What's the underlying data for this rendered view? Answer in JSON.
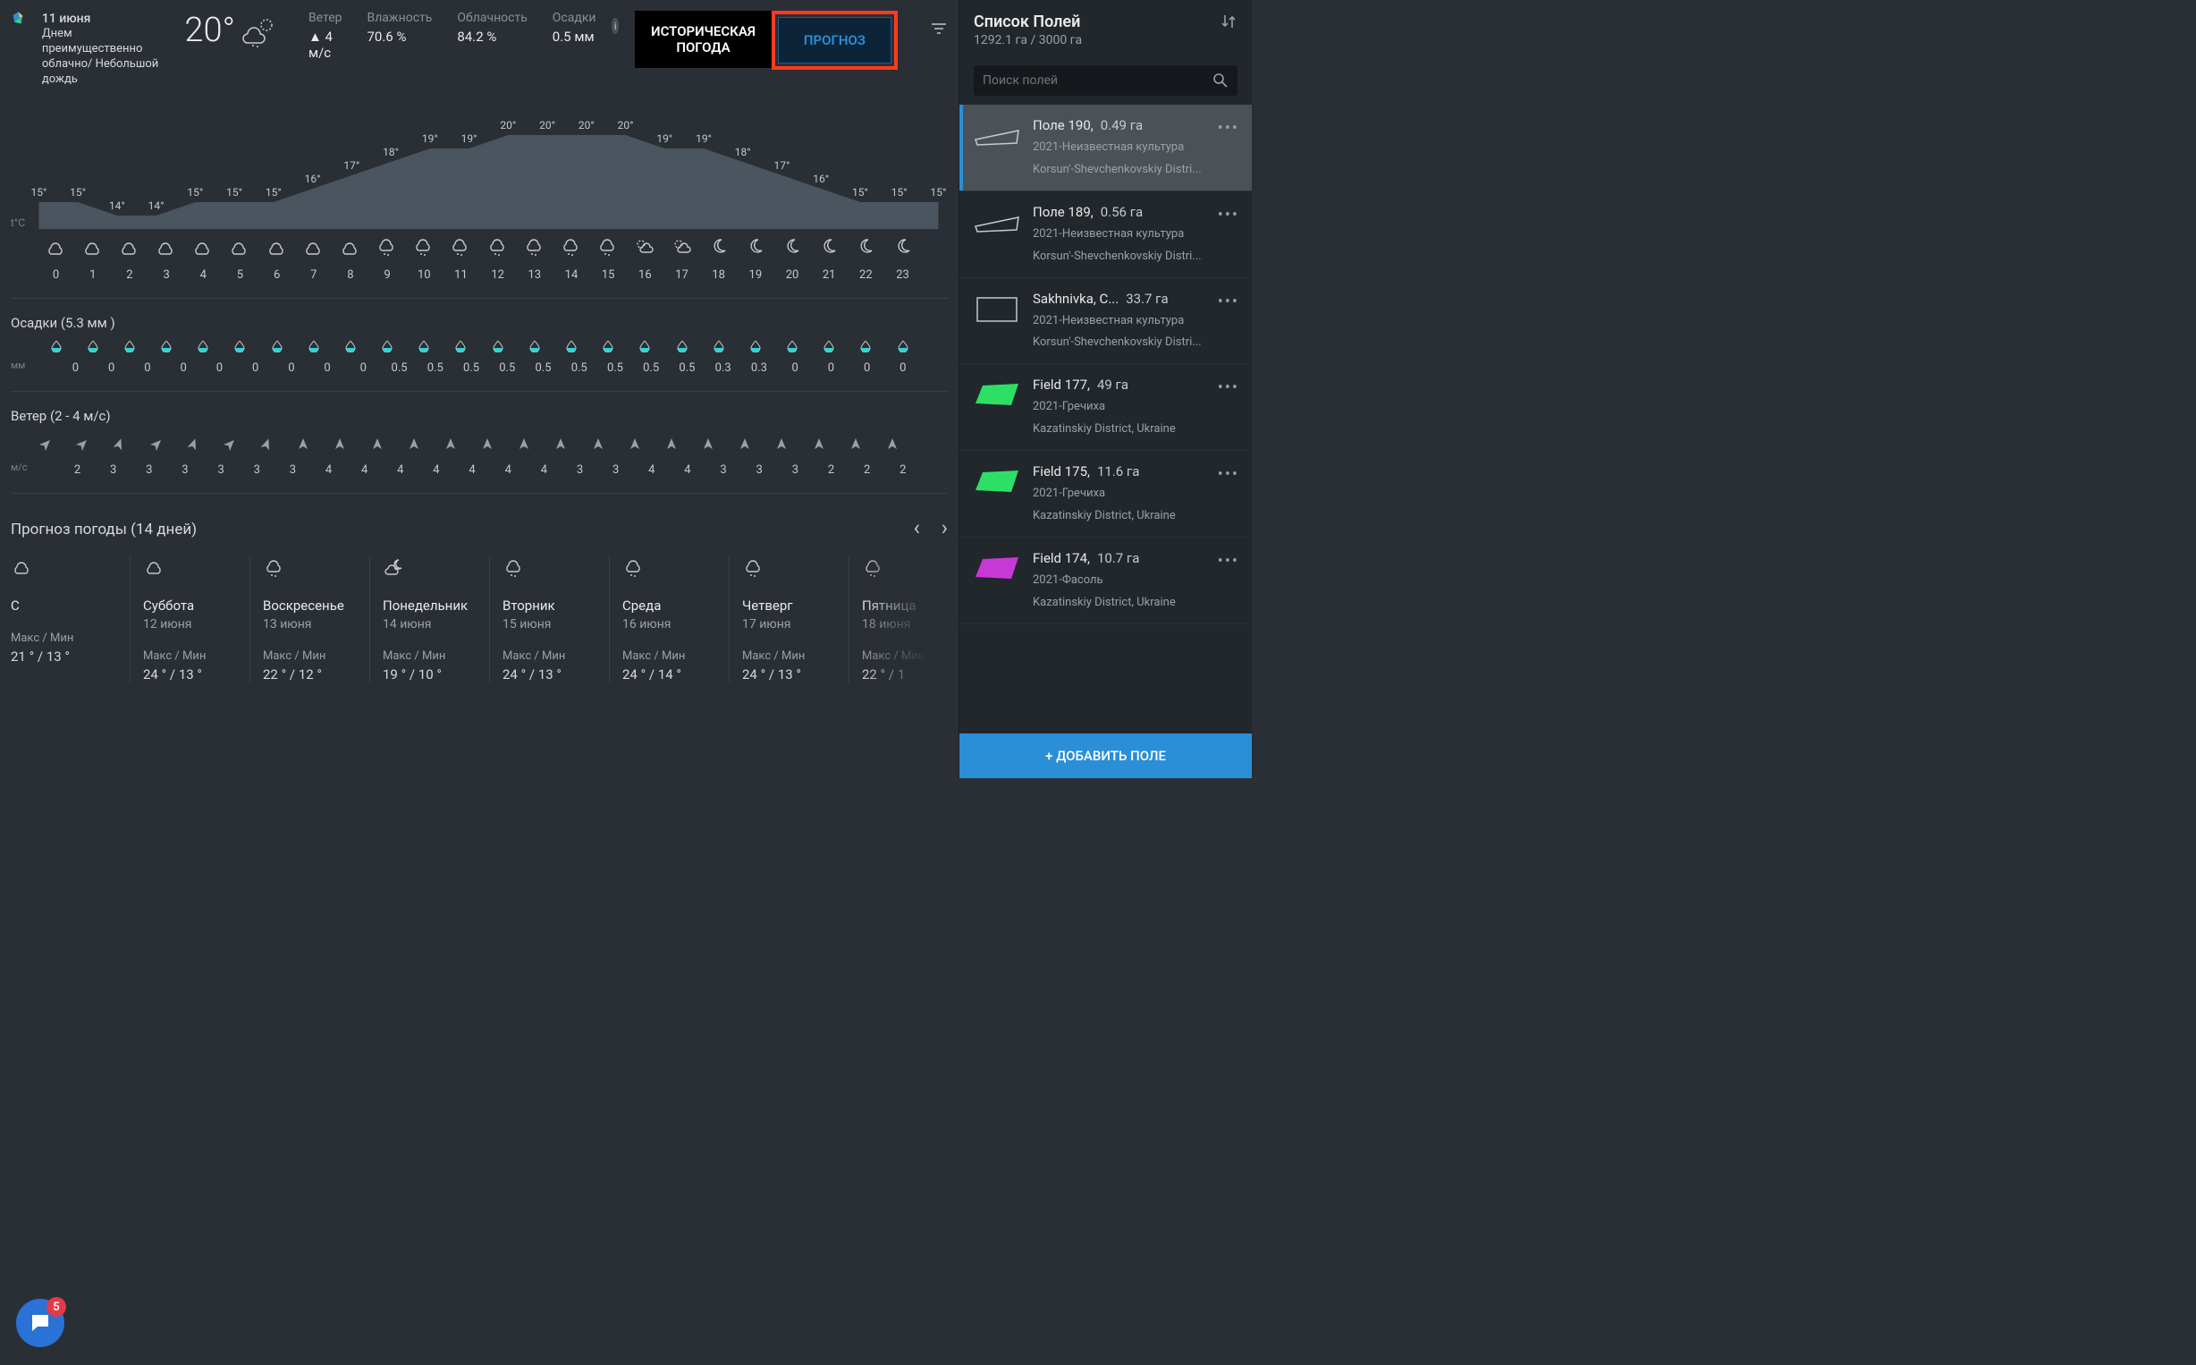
{
  "header": {
    "date": "11 июня",
    "desc": "Днем преимущественно облачно/ Небольшой дождь",
    "temp": "20°",
    "stats": {
      "wind": {
        "label": "Ветер",
        "value": "4 м/с",
        "arrow": "▲"
      },
      "humidity": {
        "label": "Влажность",
        "value": "70.6 %"
      },
      "clouds": {
        "label": "Облачность",
        "value": "84.2 %"
      },
      "precip": {
        "label": "Осадки",
        "value": "0.5 мм"
      }
    },
    "tabs": {
      "hist": "ИСТОРИЧЕСКАЯ ПОГОДА",
      "fc": "ПРОГНОЗ"
    }
  },
  "tchart": {
    "ylabel": "t°C",
    "hours": [
      "0",
      "1",
      "2",
      "3",
      "4",
      "5",
      "6",
      "7",
      "8",
      "9",
      "10",
      "11",
      "12",
      "13",
      "14",
      "15",
      "16",
      "17",
      "18",
      "19",
      "20",
      "21",
      "22",
      "23"
    ],
    "temps": [
      "15°",
      "15°",
      "14°",
      "14°",
      "15°",
      "15°",
      "15°",
      "16°",
      "17°",
      "18°",
      "19°",
      "19°",
      "20°",
      "20°",
      "20°",
      "20°",
      "19°",
      "19°",
      "18°",
      "17°",
      "16°",
      "15°",
      "15°",
      "15°"
    ],
    "tempvals": [
      15,
      15,
      14,
      14,
      15,
      15,
      15,
      16,
      17,
      18,
      19,
      19,
      20,
      20,
      20,
      20,
      19,
      19,
      18,
      17,
      16,
      15,
      15,
      15
    ],
    "icons": [
      "c",
      "c",
      "c",
      "c",
      "c",
      "c",
      "c",
      "c",
      "c",
      "cr",
      "cr",
      "cr",
      "cr",
      "cr",
      "cr",
      "cr",
      "sc",
      "sc",
      "m",
      "m",
      "m",
      "m",
      "m",
      "m"
    ],
    "area_fill": "#4a5560",
    "ymin": 13,
    "ymax": 21
  },
  "precip": {
    "title": "Осадки (5.3 мм )",
    "unit": "мм",
    "drop_fill": "#2dd4d4",
    "vals": [
      "0",
      "0",
      "0",
      "0",
      "0",
      "0",
      "0",
      "0",
      "0",
      "0.5",
      "0.5",
      "0.5",
      "0.5",
      "0.5",
      "0.5",
      "0.5",
      "0.5",
      "0.5",
      "0.3",
      "0.3",
      "0",
      "0",
      "0",
      "0"
    ]
  },
  "wind": {
    "title": "Ветер (2 - 4 м/с)",
    "unit": "м/с",
    "arrow_color": "#9aa0a6",
    "rots": [
      45,
      45,
      20,
      45,
      20,
      45,
      20,
      0,
      0,
      0,
      0,
      0,
      0,
      0,
      0,
      0,
      0,
      0,
      0,
      0,
      0,
      0,
      0,
      0
    ],
    "vals": [
      "2",
      "3",
      "3",
      "3",
      "3",
      "3",
      "3",
      "4",
      "4",
      "4",
      "4",
      "4",
      "4",
      "4",
      "3",
      "3",
      "4",
      "4",
      "3",
      "3",
      "3",
      "2",
      "2",
      "2"
    ]
  },
  "fc14": {
    "title": "Прогноз погоды (14 дней)",
    "mm_label": "Макс / Мин",
    "days": [
      {
        "ic": "c",
        "day": "С",
        "date": "",
        "mm": "21 ° / 13 °"
      },
      {
        "ic": "c",
        "day": "Суббота",
        "date": "12 июня",
        "mm": "24 ° / 13 °"
      },
      {
        "ic": "cr",
        "day": "Воскресенье",
        "date": "13 июня",
        "mm": "22 ° / 12 °"
      },
      {
        "ic": "cm",
        "day": "Понедельник",
        "date": "14 июня",
        "mm": "19 ° / 10 °"
      },
      {
        "ic": "cr",
        "day": "Вторник",
        "date": "15 июня",
        "mm": "24 ° / 13 °"
      },
      {
        "ic": "cr",
        "day": "Среда",
        "date": "16 июня",
        "mm": "24 ° / 14 °"
      },
      {
        "ic": "cr",
        "day": "Четверг",
        "date": "17 июня",
        "mm": "24 ° / 13 °"
      },
      {
        "ic": "cr",
        "day": "Пятница",
        "date": "18 июня",
        "mm": "22 ° / 1"
      }
    ]
  },
  "side": {
    "title": "Список Полей",
    "sub": "1292.1 га / 3000 га",
    "search_ph": "Поиск полей",
    "add": "+  ДОБАВИТЬ ПОЛЕ",
    "fields": [
      {
        "sel": true,
        "name": "Поле 190,",
        "area": "0.49 га",
        "d1": "2021-Неизвестная культура",
        "d2": "Korsun'-Shevchenkovskiy Distri...",
        "shape": "outline",
        "color": "#c5c9cc"
      },
      {
        "sel": false,
        "name": "Поле 189,",
        "area": "0.56 га",
        "d1": "2021-Неизвестная культура",
        "d2": "Korsun'-Shevchenkovskiy Distri...",
        "shape": "outline",
        "color": "#c5c9cc"
      },
      {
        "sel": false,
        "name": "Sakhnivka, С...",
        "area": "33.7 га",
        "d1": "2021-Неизвестная культура",
        "d2": "Korsun'-Shevchenkovskiy Distri...",
        "shape": "rect",
        "color": "#c5c9cc"
      },
      {
        "sel": false,
        "name": "Field 177,",
        "area": "49 га",
        "d1": "2021-Гречиха",
        "d2": "Kazatinskiy District, Ukraine",
        "shape": "para",
        "color": "#2de065"
      },
      {
        "sel": false,
        "name": "Field 175,",
        "area": "11.6 га",
        "d1": "2021-Гречиха",
        "d2": "Kazatinskiy District, Ukraine",
        "shape": "para",
        "color": "#2de065"
      },
      {
        "sel": false,
        "name": "Field 174,",
        "area": "10.7 га",
        "d1": "2021-Фасоль",
        "d2": "Kazatinskiy District, Ukraine",
        "shape": "para",
        "color": "#c838d6"
      }
    ]
  },
  "chat_count": "5"
}
